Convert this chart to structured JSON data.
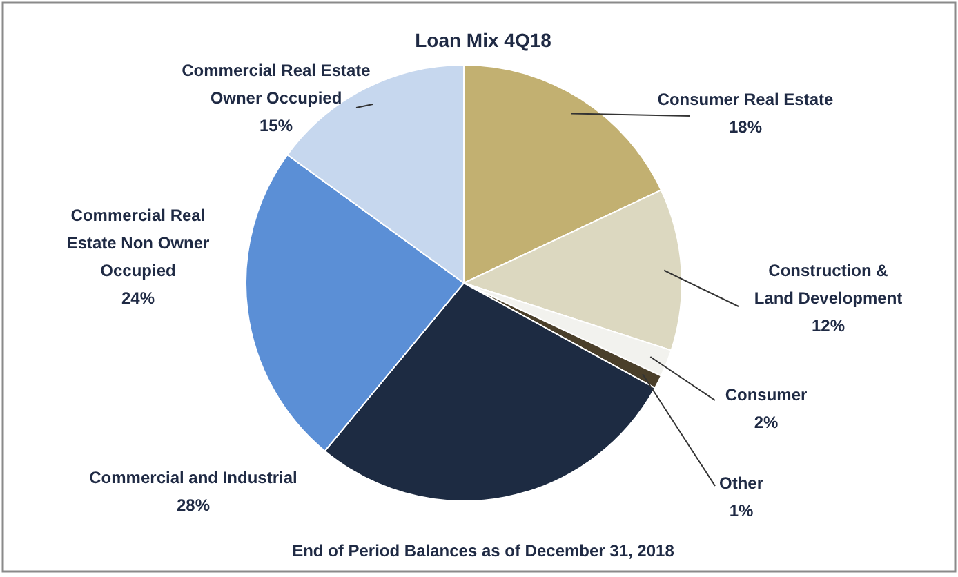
{
  "chart_data": {
    "type": "pie",
    "title": "Loan Mix 4Q18",
    "categories": [
      "Consumer Real Estate",
      "Construction & Land Development",
      "Consumer",
      "Other",
      "Commercial and Industrial",
      "Commercial Real Estate Non Owner Occupied",
      "Commercial Real Estate Owner Occupied"
    ],
    "values": [
      18,
      12,
      2,
      1,
      28,
      24,
      15
    ],
    "value_labels": [
      "18%",
      "12%",
      "2%",
      "1%",
      "28%",
      "24%",
      "15%"
    ],
    "colors": [
      "#c2b071",
      "#dcd8c0",
      "#f2f2ee",
      "#4a3f2a",
      "#1d2b42",
      "#5b8fd6",
      "#c6d7ee"
    ],
    "annotations": [
      "End of Period Balances as of December 31, 2018"
    ]
  }
}
